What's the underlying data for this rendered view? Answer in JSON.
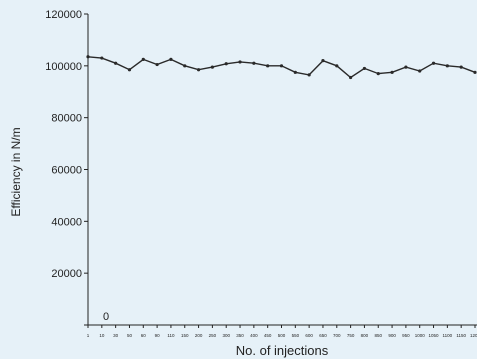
{
  "chart_data": {
    "type": "line",
    "title": "",
    "xlabel": "No. of injections",
    "ylabel": "Efficiency in N/m",
    "ylim": [
      0,
      120000
    ],
    "y_ticks": [
      "0",
      "20000",
      "40000",
      "60000",
      "80000",
      "100000",
      "120000"
    ],
    "grid": false,
    "legend": "none",
    "x_ticks": [
      "1",
      "10",
      "30",
      "50",
      "60",
      "90",
      "110",
      "150",
      "200",
      "250",
      "300",
      "350",
      "400",
      "450",
      "500",
      "550",
      "600",
      "650",
      "700",
      "750",
      "800",
      "850",
      "900",
      "950",
      "1000",
      "1050",
      "1100",
      "1150",
      "1200"
    ],
    "series": [
      {
        "values": [
          103500,
          103000,
          101000,
          98500,
          102500,
          100500,
          102500,
          100000,
          98500,
          99500,
          100800,
          101500,
          101000,
          100000,
          100000,
          97500,
          96500,
          102000,
          100000,
          95500,
          99000,
          97000,
          97500,
          99500,
          98000,
          101000,
          100000,
          99500,
          97500
        ]
      }
    ],
    "colors": {
      "line": "#2a2a2a",
      "axis": "#222222",
      "background": "#e6f1f8"
    }
  }
}
